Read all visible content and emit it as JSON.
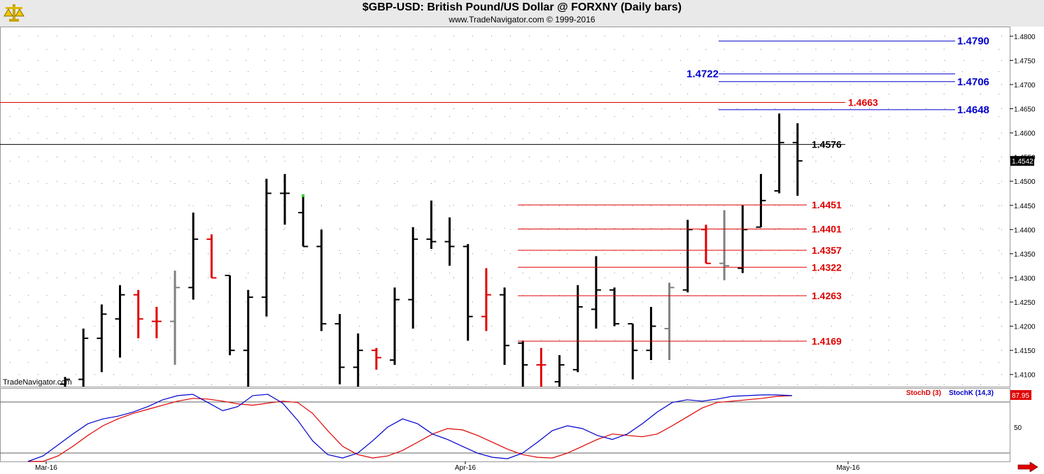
{
  "header": {
    "title": "$GBP-USD:  British Pound/US Dollar @ FORXNY  (Daily bars)",
    "subtitle": "www.TradeNavigator.com © 1999-2016"
  },
  "watermark": "TradeNavigator.com",
  "colors": {
    "up": "#000000",
    "down": "#e00000",
    "neutral": "#808080",
    "blue_level": "#0000cc",
    "red_level": "#e00000",
    "stochK": "#0000cc",
    "stochD": "#e00000"
  },
  "icons": {
    "logo": "balance-scale-icon",
    "scroll": "right-arrow-icon"
  },
  "chart_data": [
    {
      "type": "ohlc",
      "title": "$GBP-USD:  British Pound/US Dollar @ FORXNY  (Daily bars)",
      "ylim": [
        1.4075,
        1.482
      ],
      "y_ticks": [
        "1.4800",
        "1.4750",
        "1.4700",
        "1.4650",
        "1.4600",
        "1.4550",
        "1.4500",
        "1.4450",
        "1.4400",
        "1.4350",
        "1.4300",
        "1.4250",
        "1.4200",
        "1.4150",
        "1.4100"
      ],
      "x_ticks": [
        "Mar-16",
        "Apr-16",
        "May-16"
      ],
      "last_price_label": "1.4542",
      "bars": [
        {
          "h": 1.4095,
          "l": 1.4075,
          "o": 1.408,
          "c": 1.409,
          "color": "up"
        },
        {
          "h": 1.4195,
          "l": 1.4075,
          "o": 1.409,
          "c": 1.4175,
          "color": "up"
        },
        {
          "h": 1.4245,
          "l": 1.4105,
          "o": 1.4175,
          "c": 1.4225,
          "color": "up"
        },
        {
          "h": 1.4285,
          "l": 1.4135,
          "o": 1.4215,
          "c": 1.4265,
          "color": "up"
        },
        {
          "h": 1.4275,
          "l": 1.4175,
          "o": 1.4265,
          "c": 1.4215,
          "color": "down"
        },
        {
          "h": 1.424,
          "l": 1.4175,
          "o": 1.421,
          "c": 1.421,
          "color": "down"
        },
        {
          "h": 1.4315,
          "l": 1.412,
          "o": 1.421,
          "c": 1.428,
          "color": "neutral"
        },
        {
          "h": 1.4435,
          "l": 1.4255,
          "o": 1.428,
          "c": 1.438,
          "color": "up"
        },
        {
          "h": 1.439,
          "l": 1.43,
          "o": 1.438,
          "c": 1.43,
          "color": "down"
        },
        {
          "h": 1.4305,
          "l": 1.414,
          "o": 1.4305,
          "c": 1.415,
          "color": "up"
        },
        {
          "h": 1.4275,
          "l": 1.4075,
          "o": 1.415,
          "c": 1.426,
          "color": "up"
        },
        {
          "h": 1.4505,
          "l": 1.422,
          "o": 1.426,
          "c": 1.4475,
          "color": "up"
        },
        {
          "h": 1.4515,
          "l": 1.441,
          "o": 1.4475,
          "c": 1.4475,
          "color": "up"
        },
        {
          "h": 1.447,
          "l": 1.4365,
          "o": 1.4435,
          "c": 1.4365,
          "color": "up"
        },
        {
          "h": 1.44,
          "l": 1.419,
          "o": 1.4365,
          "c": 1.4205,
          "color": "up"
        },
        {
          "h": 1.4225,
          "l": 1.408,
          "o": 1.4205,
          "c": 1.4115,
          "color": "up"
        },
        {
          "h": 1.4185,
          "l": 1.4075,
          "o": 1.4115,
          "c": 1.415,
          "color": "up"
        },
        {
          "h": 1.4155,
          "l": 1.411,
          "o": 1.415,
          "c": 1.4135,
          "color": "down"
        },
        {
          "h": 1.428,
          "l": 1.412,
          "o": 1.413,
          "c": 1.4255,
          "color": "up"
        },
        {
          "h": 1.4405,
          "l": 1.4195,
          "o": 1.4255,
          "c": 1.438,
          "color": "up"
        },
        {
          "h": 1.446,
          "l": 1.436,
          "o": 1.438,
          "c": 1.4375,
          "color": "up"
        },
        {
          "h": 1.4425,
          "l": 1.4325,
          "o": 1.4375,
          "c": 1.4365,
          "color": "up"
        },
        {
          "h": 1.437,
          "l": 1.417,
          "o": 1.4365,
          "c": 1.422,
          "color": "up"
        },
        {
          "h": 1.432,
          "l": 1.419,
          "o": 1.422,
          "c": 1.4265,
          "color": "down"
        },
        {
          "h": 1.428,
          "l": 1.412,
          "o": 1.4265,
          "c": 1.416,
          "color": "up"
        },
        {
          "h": 1.417,
          "l": 1.4075,
          "o": 1.4165,
          "c": 1.412,
          "color": "up"
        },
        {
          "h": 1.4155,
          "l": 1.4075,
          "o": 1.412,
          "c": 1.412,
          "color": "down"
        },
        {
          "h": 1.414,
          "l": 1.4075,
          "o": 1.4085,
          "c": 1.412,
          "color": "up"
        },
        {
          "h": 1.4285,
          "l": 1.4105,
          "o": 1.411,
          "c": 1.424,
          "color": "up"
        },
        {
          "h": 1.4345,
          "l": 1.4195,
          "o": 1.4235,
          "c": 1.4275,
          "color": "up"
        },
        {
          "h": 1.428,
          "l": 1.42,
          "o": 1.4275,
          "c": 1.4205,
          "color": "up"
        },
        {
          "h": 1.4205,
          "l": 1.409,
          "o": 1.4205,
          "c": 1.415,
          "color": "up"
        },
        {
          "h": 1.424,
          "l": 1.413,
          "o": 1.415,
          "c": 1.42,
          "color": "up"
        },
        {
          "h": 1.429,
          "l": 1.413,
          "o": 1.4195,
          "c": 1.428,
          "color": "neutral"
        },
        {
          "h": 1.442,
          "l": 1.427,
          "o": 1.4275,
          "c": 1.44,
          "color": "up"
        },
        {
          "h": 1.441,
          "l": 1.433,
          "o": 1.44,
          "c": 1.433,
          "color": "down"
        },
        {
          "h": 1.444,
          "l": 1.4295,
          "o": 1.433,
          "c": 1.4325,
          "color": "neutral"
        },
        {
          "h": 1.445,
          "l": 1.431,
          "o": 1.432,
          "c": 1.44,
          "color": "up"
        },
        {
          "h": 1.4515,
          "l": 1.4405,
          "o": 1.4405,
          "c": 1.446,
          "color": "up"
        },
        {
          "h": 1.464,
          "l": 1.4475,
          "o": 1.448,
          "c": 1.458,
          "color": "up"
        },
        {
          "h": 1.462,
          "l": 1.447,
          "o": 1.458,
          "c": 1.4542,
          "color": "up"
        }
      ],
      "levels": [
        {
          "value": 1.479,
          "label": "1.4790",
          "color": "blue_level",
          "start_bar": 35,
          "end_bar": 48,
          "label_side": "right"
        },
        {
          "value": 1.4722,
          "label": "1.4722",
          "color": "blue_level",
          "start_bar": 35,
          "end_bar": 48,
          "label_side": "left"
        },
        {
          "value": 1.4706,
          "label": "1.4706",
          "color": "blue_level",
          "start_bar": 35,
          "end_bar": 48,
          "label_side": "right"
        },
        {
          "value": 1.4648,
          "label": "1.4648",
          "color": "blue_level",
          "start_bar": 35,
          "end_bar": 48,
          "label_side": "right"
        },
        {
          "value": 1.4663,
          "label": "1.4663",
          "color": "red_level",
          "start_bar": -1,
          "end_bar": 40,
          "label_side": "after"
        },
        {
          "value": 1.4576,
          "label": "1.4576",
          "color": "up",
          "start_bar": -1,
          "end_bar": 40,
          "label_side": "after"
        },
        {
          "value": 1.4451,
          "label": "1.4451",
          "color": "red_level",
          "start_bar": 25,
          "end_bar": 40,
          "label_side": "after"
        },
        {
          "value": 1.4401,
          "label": "1.4401",
          "color": "red_level",
          "start_bar": 25,
          "end_bar": 40,
          "label_side": "after"
        },
        {
          "value": 1.4357,
          "label": "1.4357",
          "color": "red_level",
          "start_bar": 25,
          "end_bar": 40,
          "label_side": "after"
        },
        {
          "value": 1.4322,
          "label": "1.4322",
          "color": "red_level",
          "start_bar": 25,
          "end_bar": 40,
          "label_side": "after"
        },
        {
          "value": 1.4263,
          "label": "1.4263",
          "color": "red_level",
          "start_bar": 25,
          "end_bar": 40,
          "label_side": "after"
        },
        {
          "value": 1.4169,
          "label": "1.4169",
          "color": "red_level",
          "start_bar": 25,
          "end_bar": 40,
          "label_side": "after"
        }
      ]
    },
    {
      "type": "line",
      "title": "",
      "ylim": [
        0,
        100
      ],
      "y_ticks": [
        "50"
      ],
      "value_label": "87.95",
      "series": [
        {
          "name": "StochD (3)",
          "color": "stochD",
          "values": [
            -5,
            0,
            8,
            22,
            38,
            52,
            62,
            70,
            76,
            82,
            88,
            92,
            91,
            88,
            84,
            82,
            85,
            88,
            86,
            70,
            45,
            22,
            10,
            5,
            8,
            16,
            28,
            40,
            48,
            46,
            38,
            28,
            18,
            10,
            6,
            5,
            12,
            22,
            32,
            40,
            38,
            36,
            40,
            52,
            65,
            78,
            86,
            88,
            90,
            92,
            95,
            96
          ]
        },
        {
          "name": "StochK (14,3)",
          "color": "stochK",
          "values": [
            0,
            8,
            24,
            40,
            55,
            62,
            66,
            72,
            80,
            90,
            96,
            98,
            86,
            74,
            80,
            96,
            98,
            85,
            60,
            30,
            10,
            5,
            12,
            30,
            50,
            62,
            55,
            40,
            32,
            22,
            12,
            6,
            4,
            12,
            28,
            45,
            52,
            48,
            38,
            32,
            40,
            55,
            72,
            86,
            90,
            88,
            91,
            95,
            96,
            97,
            97,
            96
          ]
        }
      ]
    }
  ]
}
